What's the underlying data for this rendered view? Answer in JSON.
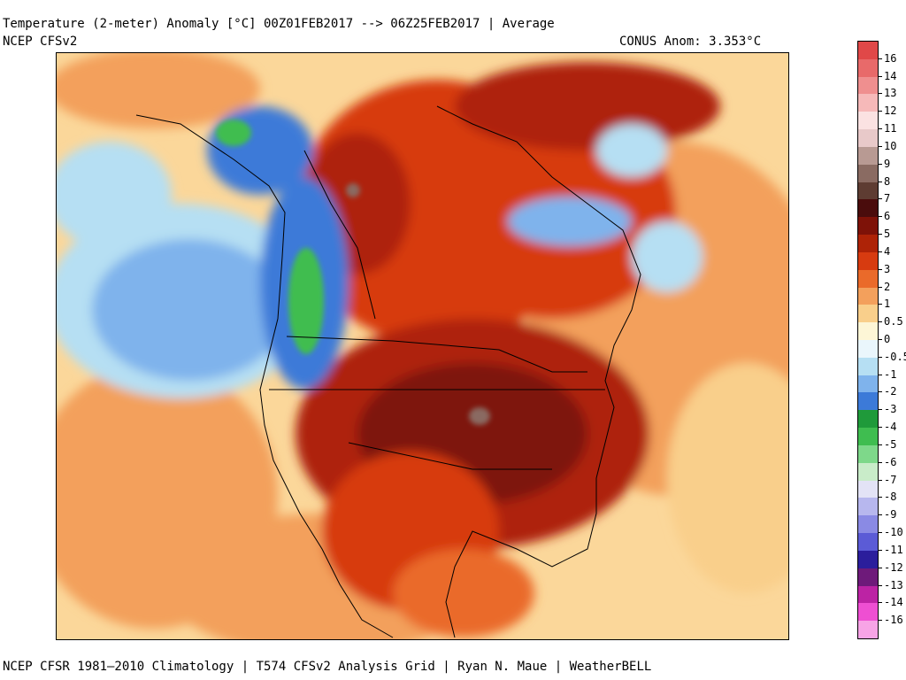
{
  "header": {
    "title": "Temperature (2-meter) Anomaly  [°C] 00Z01FEB2017 --> 06Z25FEB2017 | Average",
    "model": "NCEP CFSv2",
    "conus_anom": "CONUS Anom: 3.353°C"
  },
  "footer": {
    "credit": "NCEP CFSR 1981–2010 Climatology | T574 CFSv2 Analysis Grid | Ryan N. Maue | WeatherBELL"
  },
  "map": {
    "region": "North America",
    "variable": "2-meter temperature anomaly",
    "warmest_anomaly_area": "central United States",
    "cold_anomaly_areas": [
      "Pacific Northwest",
      "Alaska",
      "Hudson Bay",
      "Labrador Sea"
    ]
  },
  "colorbar": {
    "labels": [
      "16",
      "14",
      "13",
      "12",
      "11",
      "10",
      "9",
      "8",
      "7",
      "6",
      "5",
      "4",
      "3",
      "2",
      "1",
      "0.5",
      "0",
      "-0.5",
      "-1",
      "-2",
      "-3",
      "-4",
      "-5",
      "-6",
      "-7",
      "-8",
      "-9",
      "-10",
      "-11",
      "-12",
      "-13",
      "-14",
      "-16"
    ],
    "colors": [
      "#e04848",
      "#e86a6a",
      "#ef8f8f",
      "#f6b9b9",
      "#fbe2e2",
      "#e8c9c9",
      "#b89a93",
      "#8a6b62",
      "#5e3c32",
      "#4a0c0c",
      "#7e1208",
      "#ae2307",
      "#d73b10",
      "#ea6a2a",
      "#f3a05c",
      "#f9cf8b",
      "#fdf6d6",
      "#eaf6fc",
      "#b6dff3",
      "#7fb3ec",
      "#3c7ad8",
      "#1f9a3a",
      "#3fbd50",
      "#7ed88a",
      "#c9ecc9",
      "#e3e3f6",
      "#b7b7ee",
      "#8a8ae4",
      "#5b5bd6",
      "#2b1e9c",
      "#6e1a7a",
      "#bc23a4",
      "#ee4fd2",
      "#f7a4e6"
    ]
  }
}
